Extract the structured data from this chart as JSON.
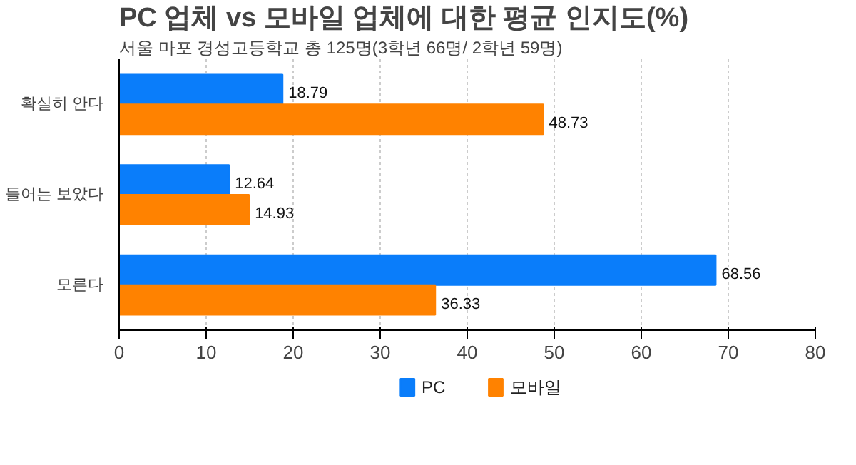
{
  "chart_data": {
    "type": "bar",
    "orientation": "horizontal",
    "title": "PC 업체 vs 모바일 업체에 대한 평균 인지도(%)",
    "subtitle": "서울 마포 경성고등학교 총 125명(3학년 66명/ 2학년 59명)",
    "categories": [
      "확실히 안다",
      "들어는 보았다",
      "모른다"
    ],
    "series": [
      {
        "name": "PC",
        "color": "#0a7dfa",
        "values": [
          18.79,
          12.64,
          68.56
        ]
      },
      {
        "name": "모바일",
        "color": "#ff8200",
        "values": [
          48.73,
          14.93,
          36.33
        ]
      }
    ],
    "xlim": [
      0,
      80
    ],
    "xticks": [
      0,
      10,
      20,
      30,
      40,
      50,
      60,
      70,
      80
    ],
    "grid": "x",
    "legend": "bottom",
    "data_labels": true
  }
}
